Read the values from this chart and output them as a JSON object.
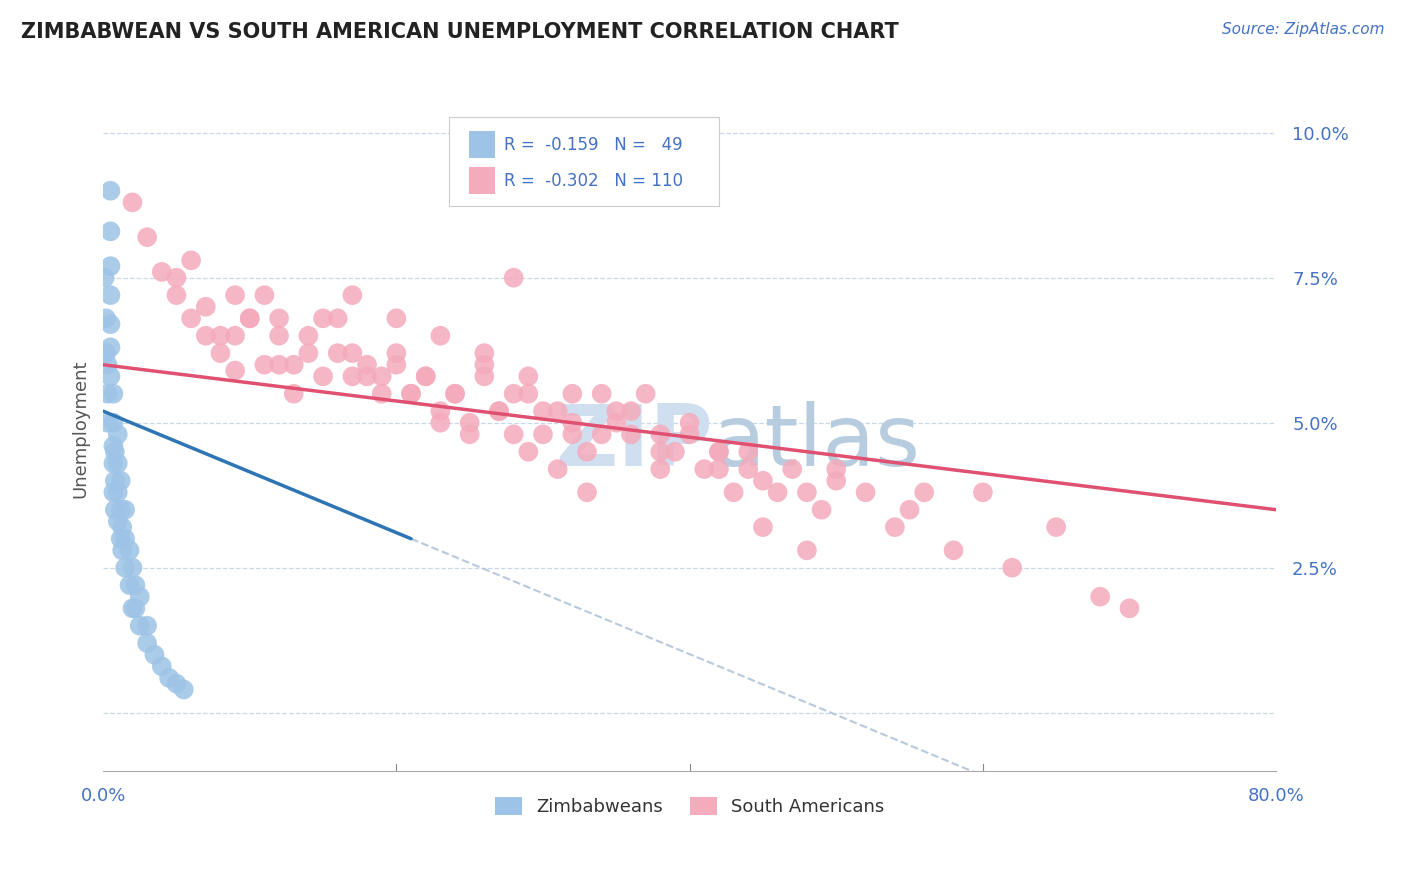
{
  "title": "ZIMBABWEAN VS SOUTH AMERICAN UNEMPLOYMENT CORRELATION CHART",
  "source": "Source: ZipAtlas.com",
  "ylabel": "Unemployment",
  "yticks": [
    0.0,
    0.025,
    0.05,
    0.075,
    0.1
  ],
  "ytick_labels": [
    "",
    "2.5%",
    "5.0%",
    "7.5%",
    "10.0%"
  ],
  "xlim": [
    0.0,
    0.8
  ],
  "ylim": [
    -0.01,
    0.108
  ],
  "blue_color": "#9DC3E6",
  "pink_color": "#F4ABBB",
  "trend_blue": "#2E75B6",
  "trend_pink": "#E05070",
  "trend_dashed_color": "#B0C4D8",
  "watermark_color": "#D0DFF0",
  "zimbabwe_points_x": [
    0.005,
    0.005,
    0.005,
    0.005,
    0.005,
    0.005,
    0.005,
    0.007,
    0.007,
    0.007,
    0.007,
    0.007,
    0.01,
    0.01,
    0.01,
    0.01,
    0.012,
    0.012,
    0.012,
    0.015,
    0.015,
    0.015,
    0.018,
    0.018,
    0.02,
    0.02,
    0.025,
    0.025,
    0.003,
    0.003,
    0.003,
    0.002,
    0.002,
    0.008,
    0.008,
    0.008,
    0.013,
    0.013,
    0.022,
    0.022,
    0.03,
    0.03,
    0.035,
    0.04,
    0.045,
    0.05,
    0.055,
    0.001
  ],
  "zimbabwe_points_y": [
    0.09,
    0.083,
    0.077,
    0.072,
    0.067,
    0.063,
    0.058,
    0.055,
    0.05,
    0.046,
    0.043,
    0.038,
    0.048,
    0.043,
    0.038,
    0.033,
    0.04,
    0.035,
    0.03,
    0.035,
    0.03,
    0.025,
    0.028,
    0.022,
    0.025,
    0.018,
    0.02,
    0.015,
    0.06,
    0.055,
    0.05,
    0.068,
    0.062,
    0.045,
    0.04,
    0.035,
    0.032,
    0.028,
    0.022,
    0.018,
    0.015,
    0.012,
    0.01,
    0.008,
    0.006,
    0.005,
    0.004,
    0.075
  ],
  "sa_points_x": [
    0.02,
    0.03,
    0.04,
    0.05,
    0.06,
    0.07,
    0.08,
    0.09,
    0.1,
    0.11,
    0.12,
    0.13,
    0.14,
    0.15,
    0.16,
    0.17,
    0.18,
    0.19,
    0.2,
    0.21,
    0.22,
    0.23,
    0.24,
    0.25,
    0.26,
    0.27,
    0.28,
    0.29,
    0.3,
    0.31,
    0.32,
    0.33,
    0.34,
    0.35,
    0.36,
    0.37,
    0.38,
    0.39,
    0.4,
    0.41,
    0.42,
    0.43,
    0.44,
    0.45,
    0.46,
    0.47,
    0.48,
    0.49,
    0.5,
    0.08,
    0.1,
    0.12,
    0.14,
    0.16,
    0.18,
    0.2,
    0.22,
    0.24,
    0.26,
    0.28,
    0.3,
    0.32,
    0.34,
    0.36,
    0.38,
    0.4,
    0.42,
    0.44,
    0.28,
    0.15,
    0.17,
    0.19,
    0.21,
    0.23,
    0.25,
    0.27,
    0.29,
    0.31,
    0.33,
    0.05,
    0.07,
    0.09,
    0.11,
    0.13,
    0.06,
    0.09,
    0.12,
    0.6,
    0.65,
    0.55,
    0.58,
    0.62,
    0.68,
    0.7,
    0.5,
    0.52,
    0.54,
    0.56,
    0.42,
    0.45,
    0.48,
    0.38,
    0.35,
    0.32,
    0.29,
    0.26,
    0.23,
    0.2,
    0.17
  ],
  "sa_points_y": [
    0.088,
    0.082,
    0.076,
    0.072,
    0.068,
    0.065,
    0.062,
    0.059,
    0.068,
    0.072,
    0.065,
    0.06,
    0.062,
    0.058,
    0.068,
    0.058,
    0.06,
    0.055,
    0.06,
    0.055,
    0.058,
    0.052,
    0.055,
    0.05,
    0.058,
    0.052,
    0.048,
    0.055,
    0.048,
    0.052,
    0.048,
    0.045,
    0.055,
    0.05,
    0.048,
    0.055,
    0.042,
    0.045,
    0.048,
    0.042,
    0.045,
    0.038,
    0.042,
    0.04,
    0.038,
    0.042,
    0.038,
    0.035,
    0.04,
    0.065,
    0.068,
    0.06,
    0.065,
    0.062,
    0.058,
    0.062,
    0.058,
    0.055,
    0.06,
    0.055,
    0.052,
    0.05,
    0.048,
    0.052,
    0.045,
    0.05,
    0.042,
    0.045,
    0.075,
    0.068,
    0.062,
    0.058,
    0.055,
    0.05,
    0.048,
    0.052,
    0.045,
    0.042,
    0.038,
    0.075,
    0.07,
    0.065,
    0.06,
    0.055,
    0.078,
    0.072,
    0.068,
    0.038,
    0.032,
    0.035,
    0.028,
    0.025,
    0.02,
    0.018,
    0.042,
    0.038,
    0.032,
    0.038,
    0.045,
    0.032,
    0.028,
    0.048,
    0.052,
    0.055,
    0.058,
    0.062,
    0.065,
    0.068,
    0.072
  ]
}
